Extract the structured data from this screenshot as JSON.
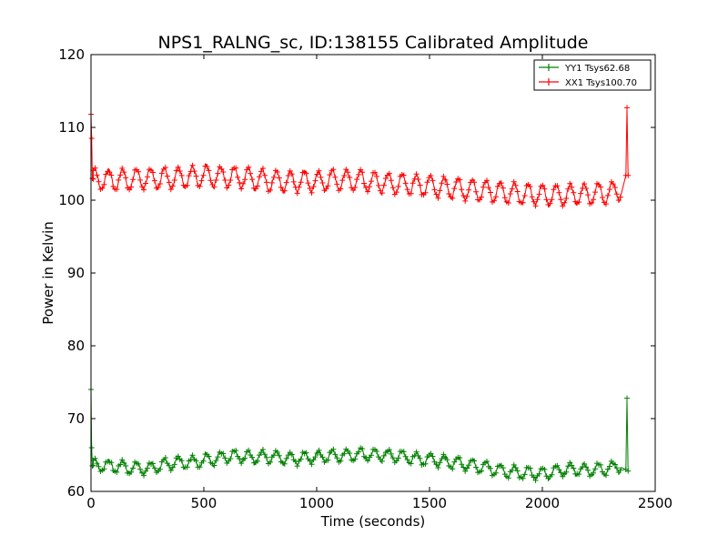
{
  "chart_data": {
    "type": "line",
    "title": "NPS1_RALNG_sc, ID:138155 Calibrated Amplitude",
    "xlabel": "Time (seconds)",
    "ylabel": "Power in Kelvin",
    "xlim": [
      0,
      2500
    ],
    "ylim": [
      60,
      120
    ],
    "xticks": [
      0,
      500,
      1000,
      1500,
      2000,
      2500
    ],
    "yticks": [
      60,
      70,
      80,
      90,
      100,
      110,
      120
    ],
    "xtick_labels": [
      "0",
      "500",
      "1000",
      "1500",
      "2000",
      "2500"
    ],
    "ytick_labels": [
      "60",
      "70",
      "80",
      "90",
      "100",
      "110",
      "120"
    ],
    "grid": false,
    "legend_position": "top-right",
    "series": [
      {
        "name": "YY1 Tsys62.68",
        "color": "#008000",
        "marker": "plus",
        "oscillation_amplitude": 0.8,
        "oscillation_period": 62,
        "x": [
          0,
          3,
          6,
          10,
          50,
          100,
          150,
          200,
          250,
          300,
          350,
          400,
          450,
          500,
          550,
          600,
          650,
          700,
          750,
          800,
          850,
          900,
          950,
          1000,
          1050,
          1100,
          1150,
          1200,
          1250,
          1300,
          1350,
          1400,
          1450,
          1500,
          1550,
          1600,
          1650,
          1700,
          1750,
          1800,
          1850,
          1900,
          1950,
          2000,
          2050,
          2100,
          2150,
          2200,
          2250,
          2300,
          2350,
          2370,
          2375,
          2380
        ],
        "y": [
          74.0,
          66.0,
          63.5,
          63.6,
          63.6,
          63.5,
          63.3,
          63.2,
          63.1,
          63.5,
          63.8,
          64.0,
          64.0,
          64.2,
          64.5,
          64.8,
          64.8,
          64.7,
          64.7,
          64.8,
          64.6,
          64.5,
          64.6,
          64.8,
          64.8,
          64.9,
          65.0,
          65.1,
          65.0,
          65.0,
          64.9,
          64.7,
          64.5,
          64.4,
          64.2,
          64.0,
          63.8,
          63.5,
          63.3,
          63.0,
          62.7,
          62.6,
          62.5,
          62.4,
          62.7,
          63.0,
          63.0,
          62.9,
          63.0,
          63.2,
          63.5,
          63.0,
          72.8,
          62.8
        ]
      },
      {
        "name": "XX1 Tsys100.70",
        "color": "#ff0000",
        "marker": "plus",
        "oscillation_amplitude": 1.4,
        "oscillation_period": 62,
        "x": [
          0,
          3,
          6,
          10,
          50,
          100,
          150,
          200,
          250,
          300,
          350,
          400,
          450,
          500,
          550,
          600,
          650,
          700,
          750,
          800,
          850,
          900,
          950,
          1000,
          1050,
          1100,
          1150,
          1200,
          1250,
          1300,
          1350,
          1400,
          1450,
          1500,
          1550,
          1600,
          1650,
          1700,
          1750,
          1800,
          1850,
          1900,
          1950,
          2000,
          2050,
          2100,
          2150,
          2200,
          2250,
          2300,
          2350,
          2370,
          2375,
          2380
        ],
        "y": [
          111.8,
          108.5,
          103.0,
          102.9,
          102.9,
          102.8,
          102.8,
          102.9,
          103.0,
          103.0,
          103.0,
          103.1,
          103.2,
          103.3,
          103.3,
          103.2,
          103.1,
          103.0,
          102.8,
          102.7,
          102.6,
          102.6,
          102.6,
          102.6,
          102.7,
          102.8,
          102.8,
          102.7,
          102.5,
          102.4,
          102.3,
          102.2,
          102.1,
          102.0,
          101.8,
          101.7,
          101.5,
          101.4,
          101.3,
          101.2,
          101.0,
          100.9,
          100.8,
          100.7,
          100.7,
          100.7,
          100.8,
          100.8,
          100.9,
          101.0,
          101.5,
          103.4,
          112.7,
          103.4
        ]
      }
    ]
  }
}
